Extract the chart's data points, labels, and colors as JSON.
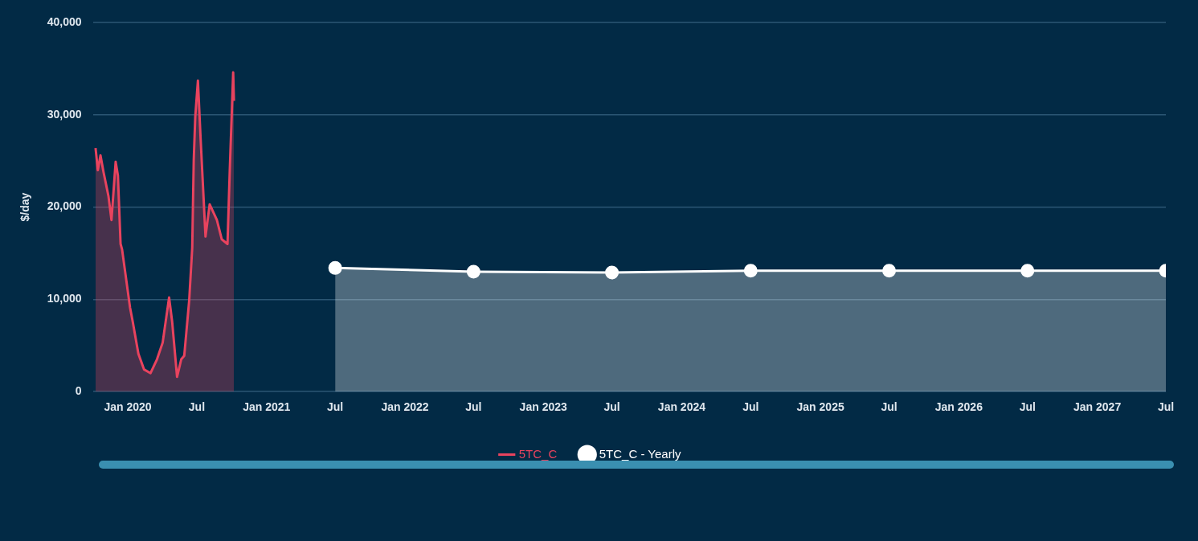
{
  "chart_data": {
    "type": "area",
    "ylabel": "$/day",
    "xlim": [
      "2019-10-01",
      "2027-07-01"
    ],
    "xticks": [
      {
        "value": "2020-01-01",
        "label": "Jan 2020"
      },
      {
        "value": "2020-07-01",
        "label": "Jul"
      },
      {
        "value": "2021-01-01",
        "label": "Jan 2021"
      },
      {
        "value": "2021-07-01",
        "label": "Jul"
      },
      {
        "value": "2022-01-01",
        "label": "Jan 2022"
      },
      {
        "value": "2022-07-01",
        "label": "Jul"
      },
      {
        "value": "2023-01-01",
        "label": "Jan 2023"
      },
      {
        "value": "2023-07-01",
        "label": "Jul"
      },
      {
        "value": "2024-01-01",
        "label": "Jan 2024"
      },
      {
        "value": "2024-07-01",
        "label": "Jul"
      },
      {
        "value": "2025-01-01",
        "label": "Jan 2025"
      },
      {
        "value": "2025-07-01",
        "label": "Jul"
      },
      {
        "value": "2026-01-01",
        "label": "Jan 2026"
      },
      {
        "value": "2026-07-01",
        "label": "Jul"
      },
      {
        "value": "2027-01-01",
        "label": "Jan 2027"
      },
      {
        "value": "2027-07-01",
        "label": "Jul"
      }
    ],
    "ylim": [
      0,
      40000
    ],
    "yticks": [
      0,
      {
        "value": 10000,
        "label": "10,000"
      },
      {
        "value": 20000,
        "label": "20,000"
      },
      {
        "value": 30000,
        "label": "30,000"
      },
      {
        "value": 40000,
        "label": "40,000"
      }
    ],
    "grid": "y",
    "legend": "bottom",
    "marker": "circle",
    "series": [
      {
        "name": "5TC_C",
        "color": "#e8435e",
        "marker": "none",
        "x": [
          "2019-10-08",
          "2019-10-14",
          "2019-10-21",
          "2019-10-29",
          "2019-11-11",
          "2019-11-19",
          "2019-11-30",
          "2019-12-06",
          "2019-12-13",
          "2019-12-17",
          "2020-01-07",
          "2020-01-14",
          "2020-01-29",
          "2020-02-13",
          "2020-03-01",
          "2020-03-18",
          "2020-04-02",
          "2020-04-19",
          "2020-04-27",
          "2020-05-10",
          "2020-05-21",
          "2020-05-29",
          "2020-06-11",
          "2020-06-19",
          "2020-06-23",
          "2020-06-27",
          "2020-07-04",
          "2020-07-11",
          "2020-07-24",
          "2020-08-04",
          "2020-08-23",
          "2020-09-05",
          "2020-09-20",
          "2020-09-26",
          "2020-10-05",
          "2020-10-07"
        ],
        "values": [
          26400,
          24000,
          25600,
          23800,
          21200,
          18600,
          24900,
          23400,
          16000,
          15400,
          9100,
          7600,
          4100,
          2400,
          2000,
          3500,
          5300,
          10200,
          7600,
          1600,
          3500,
          3900,
          9900,
          15600,
          25100,
          29800,
          33700,
          27500,
          16800,
          20300,
          18600,
          16500,
          16000,
          24000,
          34600,
          31500
        ]
      },
      {
        "name": "5TC_C - Yearly",
        "color": "#ffffff",
        "x": [
          "2021-07-01",
          "2022-07-01",
          "2023-07-01",
          "2024-07-01",
          "2025-07-01",
          "2026-07-01",
          "2027-07-01"
        ],
        "values": [
          13400,
          13000,
          12900,
          13100,
          13100,
          13100,
          13100
        ]
      }
    ]
  }
}
